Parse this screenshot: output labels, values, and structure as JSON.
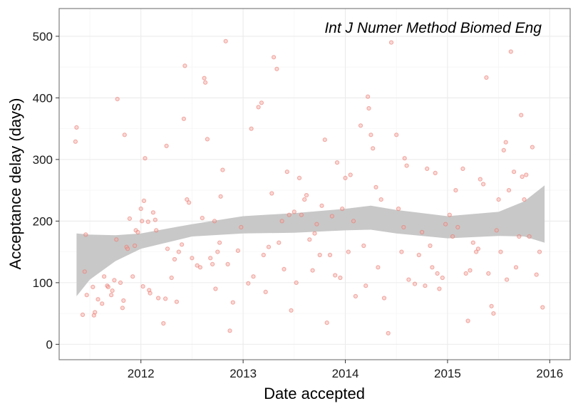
{
  "chart_data": {
    "type": "scatter",
    "title": "",
    "annotation": "Int J Numer Method Biomed Eng",
    "xlabel": "Date accepted",
    "ylabel": "Acceptance delay (days)",
    "xlim": [
      2011.2,
      2016.2
    ],
    "ylim": [
      -25,
      545
    ],
    "x_ticks": [
      2012,
      2013,
      2014,
      2015,
      2016
    ],
    "x_tick_labels": [
      "2012",
      "2013",
      "2014",
      "2015",
      "2016"
    ],
    "y_ticks": [
      0,
      100,
      200,
      300,
      400,
      500
    ],
    "y_tick_labels": [
      "0",
      "100",
      "200",
      "300",
      "400",
      "500"
    ],
    "grid": true,
    "colors": {
      "point_fill": "#f4a6a0",
      "point_stroke": "#e8786e",
      "ribbon": "#c8c8c8",
      "grid_major": "#ebebeb",
      "grid_minor": "#f5f5f5",
      "panel_border": "#7f7f7f"
    },
    "smooth_band": {
      "x": [
        2011.37,
        2011.5,
        2011.75,
        2012.0,
        2012.5,
        2013.0,
        2013.5,
        2014.0,
        2014.25,
        2014.5,
        2015.0,
        2015.5,
        2015.75,
        2015.95
      ],
      "upper": [
        180,
        178,
        177,
        180,
        195,
        208,
        213,
        220,
        225,
        218,
        208,
        215,
        232,
        258
      ],
      "lower": [
        78,
        105,
        135,
        155,
        175,
        180,
        181,
        185,
        186,
        180,
        172,
        176,
        175,
        165
      ]
    },
    "points": [
      [
        2011.37,
        352
      ],
      [
        2011.36,
        329
      ],
      [
        2011.43,
        48
      ],
      [
        2011.46,
        178
      ],
      [
        2011.45,
        118
      ],
      [
        2011.47,
        80
      ],
      [
        2011.53,
        93
      ],
      [
        2011.54,
        47
      ],
      [
        2011.55,
        52
      ],
      [
        2011.58,
        73
      ],
      [
        2011.62,
        66
      ],
      [
        2011.64,
        110
      ],
      [
        2011.67,
        95
      ],
      [
        2011.68,
        93
      ],
      [
        2011.71,
        80
      ],
      [
        2011.72,
        87
      ],
      [
        2011.74,
        104
      ],
      [
        2011.76,
        170
      ],
      [
        2011.77,
        398
      ],
      [
        2011.8,
        100
      ],
      [
        2011.82,
        59
      ],
      [
        2011.83,
        71
      ],
      [
        2011.84,
        340
      ],
      [
        2011.86,
        158
      ],
      [
        2011.87,
        155
      ],
      [
        2011.89,
        204
      ],
      [
        2011.92,
        110
      ],
      [
        2011.94,
        160
      ],
      [
        2011.95,
        185
      ],
      [
        2011.97,
        182
      ],
      [
        2012.0,
        220
      ],
      [
        2012.01,
        200
      ],
      [
        2012.02,
        94
      ],
      [
        2012.03,
        233
      ],
      [
        2012.04,
        302
      ],
      [
        2012.07,
        199
      ],
      [
        2012.08,
        88
      ],
      [
        2012.09,
        83
      ],
      [
        2012.12,
        214
      ],
      [
        2012.14,
        202
      ],
      [
        2012.15,
        185
      ],
      [
        2012.17,
        75
      ],
      [
        2012.22,
        34
      ],
      [
        2012.24,
        74
      ],
      [
        2012.25,
        322
      ],
      [
        2012.26,
        155
      ],
      [
        2012.3,
        108
      ],
      [
        2012.33,
        138
      ],
      [
        2012.35,
        69
      ],
      [
        2012.37,
        150
      ],
      [
        2012.4,
        162
      ],
      [
        2012.42,
        366
      ],
      [
        2012.43,
        452
      ],
      [
        2012.45,
        235
      ],
      [
        2012.47,
        230
      ],
      [
        2012.5,
        140
      ],
      [
        2012.55,
        128
      ],
      [
        2012.58,
        125
      ],
      [
        2012.6,
        205
      ],
      [
        2012.62,
        432
      ],
      [
        2012.63,
        425
      ],
      [
        2012.65,
        333
      ],
      [
        2012.68,
        140
      ],
      [
        2012.7,
        130
      ],
      [
        2012.72,
        200
      ],
      [
        2012.73,
        90
      ],
      [
        2012.75,
        150
      ],
      [
        2012.77,
        165
      ],
      [
        2012.78,
        240
      ],
      [
        2012.8,
        283
      ],
      [
        2012.83,
        492
      ],
      [
        2012.85,
        130
      ],
      [
        2012.87,
        22
      ],
      [
        2012.9,
        68
      ],
      [
        2012.95,
        152
      ],
      [
        2012.98,
        190
      ],
      [
        2013.05,
        99
      ],
      [
        2013.08,
        350
      ],
      [
        2013.1,
        110
      ],
      [
        2013.15,
        385
      ],
      [
        2013.18,
        392
      ],
      [
        2013.2,
        145
      ],
      [
        2013.22,
        85
      ],
      [
        2013.25,
        158
      ],
      [
        2013.28,
        245
      ],
      [
        2013.3,
        466
      ],
      [
        2013.33,
        447
      ],
      [
        2013.35,
        165
      ],
      [
        2013.38,
        200
      ],
      [
        2013.4,
        122
      ],
      [
        2013.43,
        280
      ],
      [
        2013.45,
        210
      ],
      [
        2013.47,
        55
      ],
      [
        2013.5,
        215
      ],
      [
        2013.52,
        100
      ],
      [
        2013.55,
        270
      ],
      [
        2013.57,
        210
      ],
      [
        2013.6,
        235
      ],
      [
        2013.62,
        242
      ],
      [
        2013.65,
        170
      ],
      [
        2013.68,
        120
      ],
      [
        2013.7,
        180
      ],
      [
        2013.72,
        195
      ],
      [
        2013.75,
        145
      ],
      [
        2013.77,
        225
      ],
      [
        2013.8,
        332
      ],
      [
        2013.82,
        35
      ],
      [
        2013.85,
        145
      ],
      [
        2013.87,
        208
      ],
      [
        2013.9,
        112
      ],
      [
        2013.92,
        295
      ],
      [
        2013.95,
        108
      ],
      [
        2013.97,
        220
      ],
      [
        2014.0,
        270
      ],
      [
        2014.03,
        150
      ],
      [
        2014.05,
        275
      ],
      [
        2014.08,
        200
      ],
      [
        2014.1,
        78
      ],
      [
        2014.15,
        355
      ],
      [
        2014.18,
        160
      ],
      [
        2014.2,
        95
      ],
      [
        2014.22,
        402
      ],
      [
        2014.23,
        383
      ],
      [
        2014.25,
        340
      ],
      [
        2014.27,
        318
      ],
      [
        2014.3,
        255
      ],
      [
        2014.32,
        125
      ],
      [
        2014.35,
        235
      ],
      [
        2014.38,
        75
      ],
      [
        2014.42,
        18
      ],
      [
        2014.45,
        490
      ],
      [
        2014.5,
        340
      ],
      [
        2014.52,
        220
      ],
      [
        2014.55,
        150
      ],
      [
        2014.57,
        190
      ],
      [
        2014.58,
        302
      ],
      [
        2014.6,
        290
      ],
      [
        2014.62,
        105
      ],
      [
        2014.68,
        98
      ],
      [
        2014.72,
        145
      ],
      [
        2014.75,
        182
      ],
      [
        2014.78,
        95
      ],
      [
        2014.8,
        285
      ],
      [
        2014.83,
        160
      ],
      [
        2014.85,
        125
      ],
      [
        2014.88,
        278
      ],
      [
        2014.9,
        115
      ],
      [
        2014.92,
        90
      ],
      [
        2014.95,
        108
      ],
      [
        2014.98,
        195
      ],
      [
        2015.02,
        210
      ],
      [
        2015.05,
        175
      ],
      [
        2015.08,
        250
      ],
      [
        2015.1,
        190
      ],
      [
        2015.15,
        285
      ],
      [
        2015.18,
        115
      ],
      [
        2015.2,
        38
      ],
      [
        2015.22,
        120
      ],
      [
        2015.25,
        165
      ],
      [
        2015.28,
        150
      ],
      [
        2015.3,
        155
      ],
      [
        2015.32,
        268
      ],
      [
        2015.35,
        260
      ],
      [
        2015.38,
        433
      ],
      [
        2015.4,
        115
      ],
      [
        2015.43,
        62
      ],
      [
        2015.45,
        50
      ],
      [
        2015.48,
        185
      ],
      [
        2015.5,
        235
      ],
      [
        2015.52,
        150
      ],
      [
        2015.55,
        315
      ],
      [
        2015.57,
        328
      ],
      [
        2015.58,
        105
      ],
      [
        2015.6,
        250
      ],
      [
        2015.62,
        475
      ],
      [
        2015.65,
        280
      ],
      [
        2015.67,
        125
      ],
      [
        2015.7,
        175
      ],
      [
        2015.72,
        372
      ],
      [
        2015.73,
        272
      ],
      [
        2015.75,
        235
      ],
      [
        2015.77,
        275
      ],
      [
        2015.8,
        175
      ],
      [
        2015.83,
        320
      ],
      [
        2015.87,
        113
      ],
      [
        2015.9,
        150
      ],
      [
        2015.93,
        60
      ]
    ]
  }
}
